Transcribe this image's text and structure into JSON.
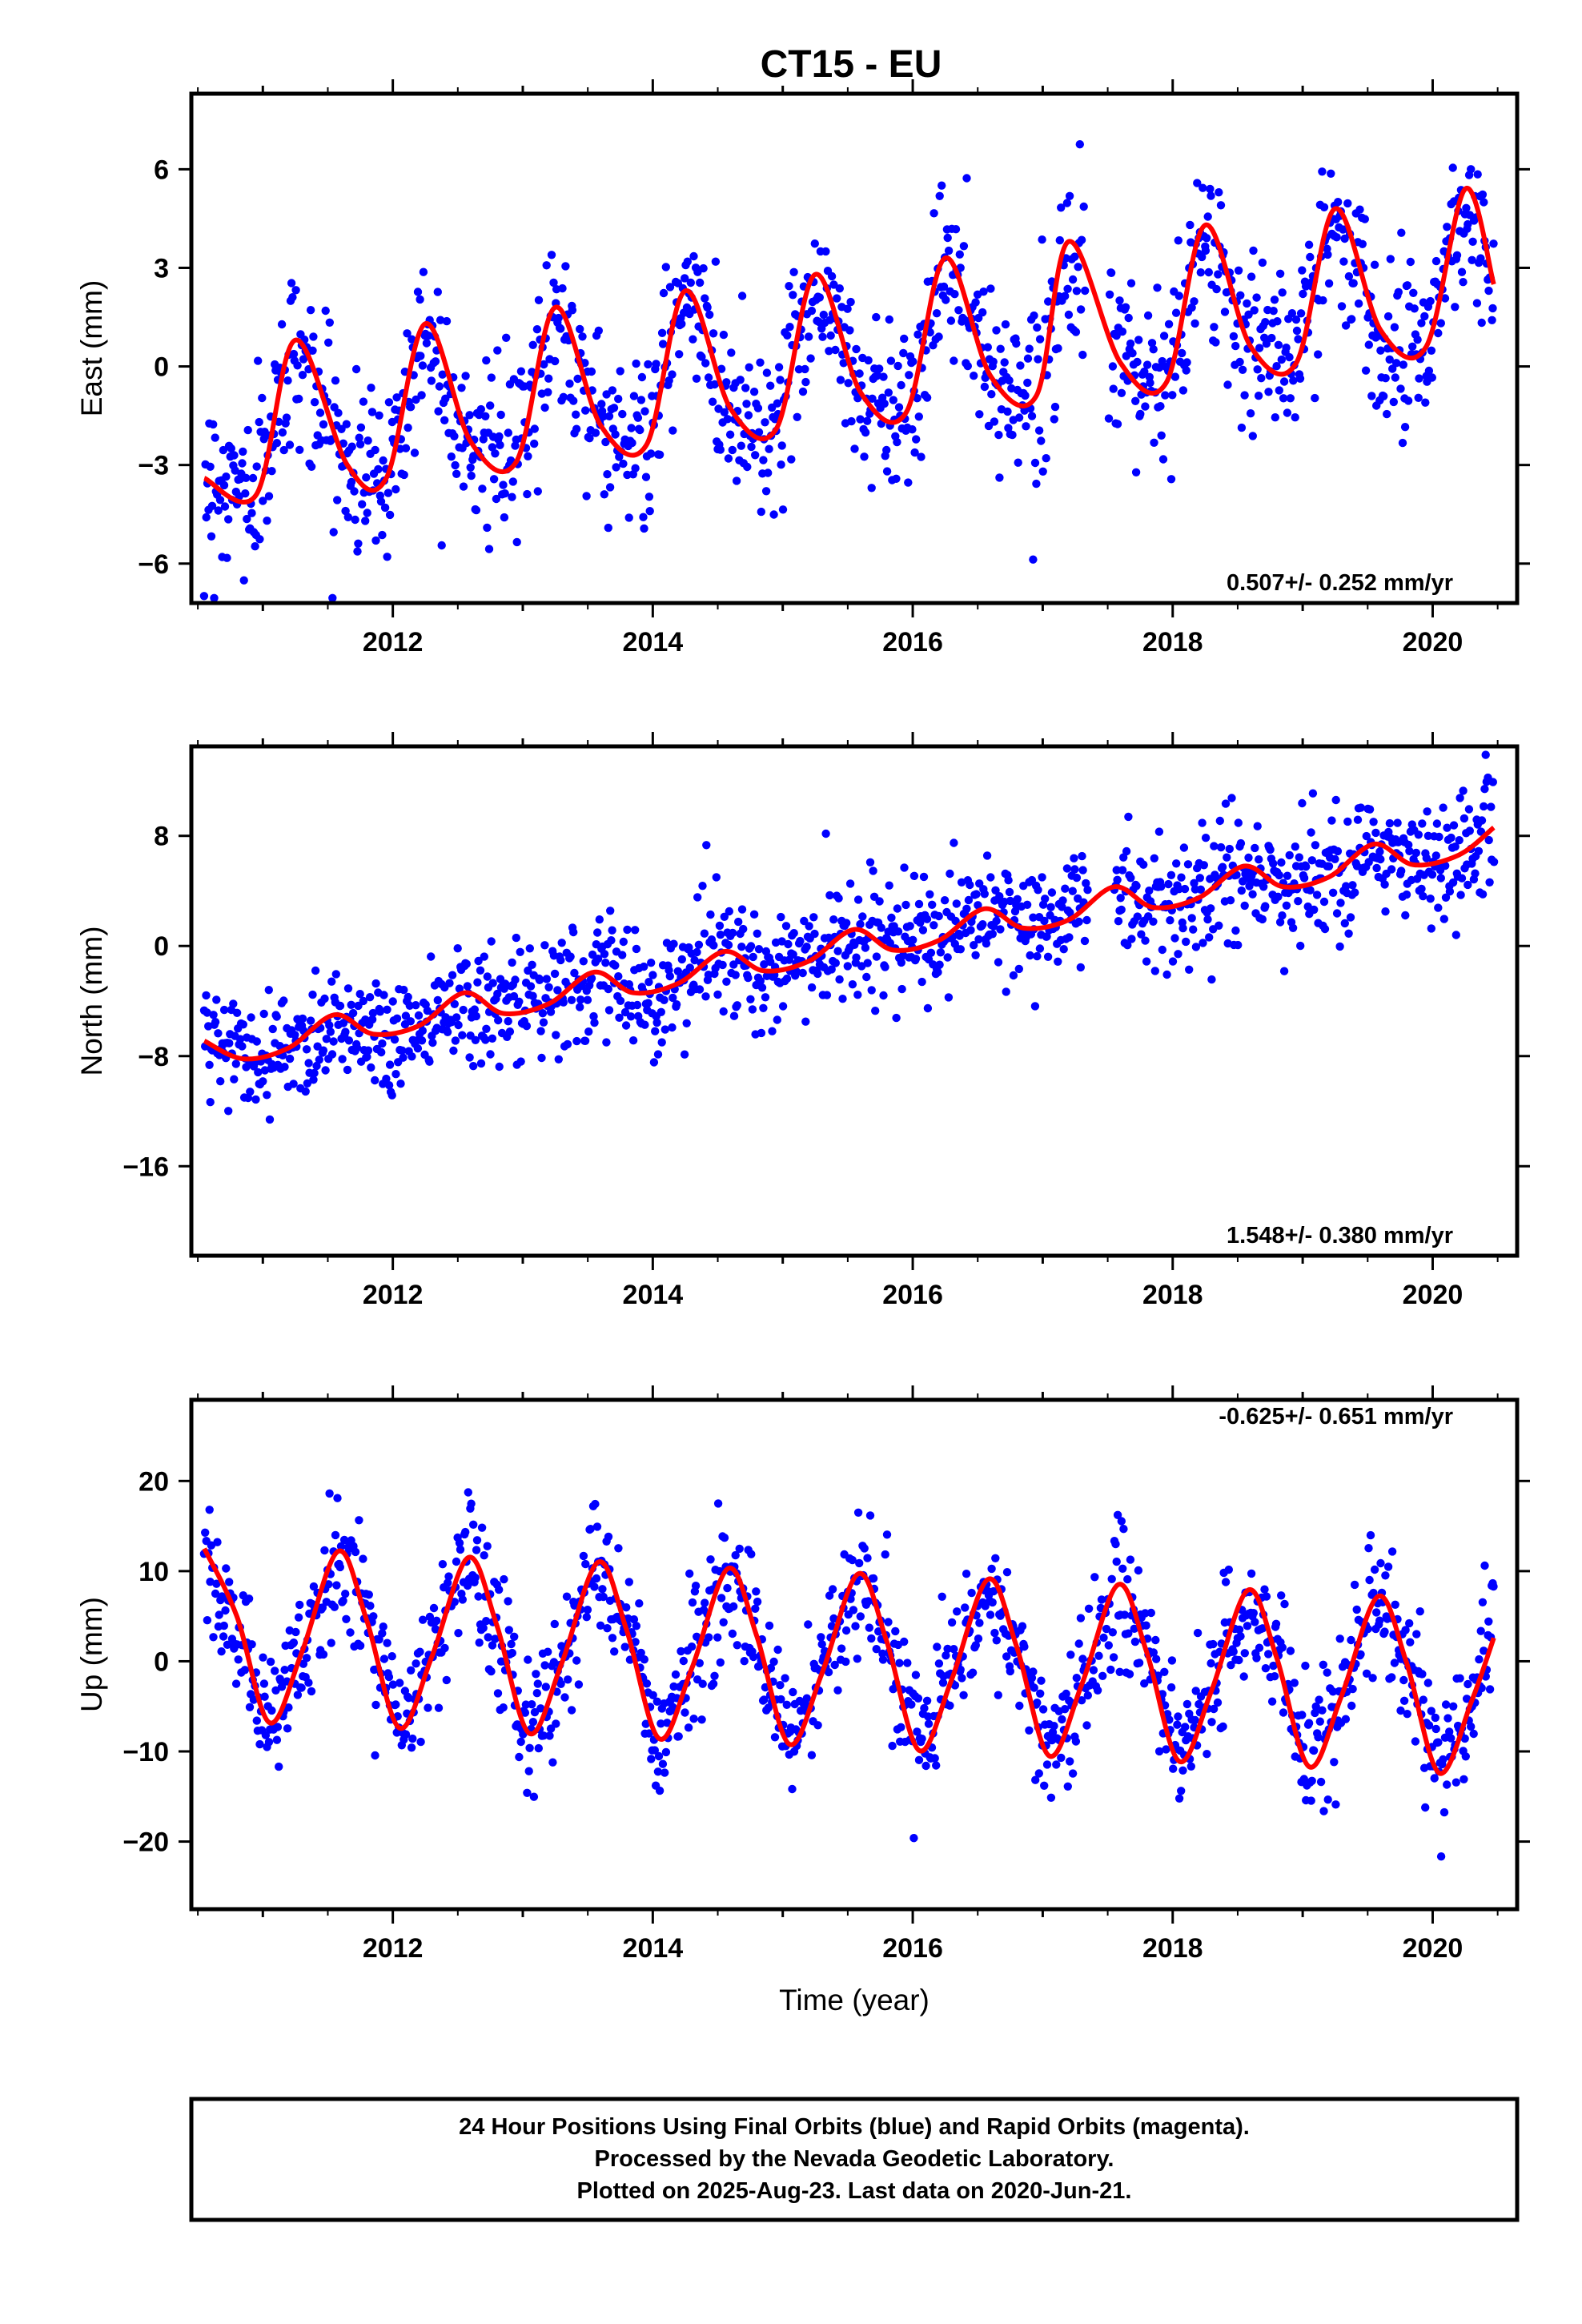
{
  "title": "CT15 - EU",
  "footer": {
    "line1": "24 Hour Positions Using Final Orbits (blue) and Rapid Orbits (magenta).",
    "line2": "Processed by the Nevada Geodetic Laboratory.",
    "line3": "Plotted on 2025-Aug-23. Last data on 2020-Jun-21."
  },
  "colors": {
    "points": "#0000ff",
    "fit": "#ff0000",
    "frame": "#000000"
  },
  "chart_data": [
    {
      "type": "scatter",
      "ylabel": "East (mm)",
      "xlabel": "",
      "rate_label": "0.507+/- 0.252 mm/yr",
      "rate_position": "bottom-right",
      "xlim": [
        2010.45,
        2020.65
      ],
      "ylim": [
        -7.2,
        8.3
      ],
      "xticks": [
        "2012",
        "2014",
        "2016",
        "2018",
        "2020"
      ],
      "yticks": [
        "6",
        "3",
        "0",
        "-3",
        "-6"
      ],
      "series": [
        {
          "kind": "points",
          "values_note": "daily positions, first/last data 2010.55 / 2020.47",
          "x_start": 2010.55,
          "x_end": 2020.47,
          "trend_mm_per_yr": 0.507,
          "offset_mm": -1.6,
          "annual_amp_mm": 2.6,
          "phase_yr": 0.02,
          "scatter_mm": 1.3
        },
        {
          "kind": "fit",
          "x": [
            2010.55,
            2010.95,
            2011.25,
            2011.65,
            2011.95,
            2012.25,
            2012.6,
            2012.95,
            2013.25,
            2013.6,
            2013.95,
            2014.25,
            2014.6,
            2014.95,
            2015.25,
            2015.6,
            2015.95,
            2016.25,
            2016.6,
            2016.95,
            2017.2,
            2017.6,
            2017.95,
            2018.25,
            2018.6,
            2018.95,
            2019.25,
            2019.6,
            2019.95,
            2020.25,
            2020.47
          ],
          "y": [
            -3.4,
            -3.9,
            0.8,
            -3.0,
            -3.4,
            1.3,
            -2.3,
            -2.9,
            1.8,
            -1.8,
            -2.4,
            2.3,
            -1.3,
            -1.9,
            2.8,
            -0.8,
            -1.4,
            3.3,
            -0.3,
            -0.9,
            3.8,
            0.1,
            -0.5,
            4.3,
            0.6,
            0.1,
            4.8,
            1.1,
            0.6,
            5.4,
            2.5
          ]
        }
      ]
    },
    {
      "type": "scatter",
      "ylabel": "North (mm)",
      "xlabel": "",
      "rate_label": "1.548+/- 0.380 mm/yr",
      "rate_position": "bottom-right",
      "xlim": [
        2010.45,
        2020.65
      ],
      "ylim": [
        -22.5,
        14.5
      ],
      "xticks": [
        "2012",
        "2014",
        "2016",
        "2018",
        "2020"
      ],
      "yticks": [
        "8",
        "0",
        "-8",
        "-16"
      ],
      "series": [
        {
          "kind": "points",
          "x_start": 2010.55,
          "x_end": 2020.47,
          "trend_mm_per_yr": 1.548,
          "offset_mm": -7.6,
          "annual_amp_mm": 1.0,
          "phase_yr": 0.3,
          "scatter_mm": 2.2
        },
        {
          "kind": "fit",
          "x": [
            2010.55,
            2010.85,
            2011.2,
            2011.55,
            2011.85,
            2012.2,
            2012.55,
            2012.85,
            2013.2,
            2013.55,
            2013.85,
            2014.2,
            2014.55,
            2014.85,
            2015.2,
            2015.55,
            2015.85,
            2016.2,
            2016.55,
            2016.85,
            2017.2,
            2017.55,
            2017.85,
            2018.2,
            2018.55,
            2018.85,
            2019.2,
            2019.55,
            2019.85,
            2020.2,
            2020.47
          ],
          "y": [
            -6.9,
            -8.2,
            -7.4,
            -5.0,
            -6.4,
            -5.8,
            -3.4,
            -4.9,
            -4.2,
            -1.9,
            -3.4,
            -2.7,
            -0.4,
            -1.8,
            -1.1,
            1.2,
            -0.3,
            0.4,
            2.7,
            1.3,
            1.9,
            4.3,
            2.8,
            3.5,
            5.8,
            4.3,
            5.0,
            7.4,
            5.9,
            6.6,
            8.6
          ]
        }
      ]
    },
    {
      "type": "scatter",
      "ylabel": "Up (mm)",
      "xlabel": "Time (year)",
      "rate_label": "-0.625+/- 0.651 mm/yr",
      "rate_position": "top-right",
      "xlim": [
        2010.45,
        2020.65
      ],
      "ylim": [
        -27.5,
        29
      ],
      "xticks": [
        "2012",
        "2014",
        "2016",
        "2018",
        "2020"
      ],
      "yticks": [
        "20",
        "10",
        "0",
        "-10",
        "-20"
      ],
      "series": [
        {
          "kind": "points",
          "x_start": 2010.55,
          "x_end": 2020.47,
          "trend_mm_per_yr": -0.625,
          "offset_mm": 3.0,
          "annual_amp_mm": 10.0,
          "phase_yr": 0.58,
          "scatter_mm": 3.8
        },
        {
          "kind": "fit",
          "x": [
            2010.55,
            2010.8,
            2011.05,
            2011.3,
            2011.58,
            2011.8,
            2012.05,
            2012.3,
            2012.58,
            2012.8,
            2013.05,
            2013.3,
            2013.58,
            2013.8,
            2014.05,
            2014.3,
            2014.58,
            2014.8,
            2015.05,
            2015.3,
            2015.58,
            2015.8,
            2016.05,
            2016.3,
            2016.58,
            2016.8,
            2017.05,
            2017.3,
            2017.58,
            2017.8,
            2018.05,
            2018.3,
            2018.58,
            2018.8,
            2019.05,
            2019.3,
            2019.58,
            2019.8,
            2020.05,
            2020.3,
            2020.47
          ],
          "y": [
            12.5,
            5.0,
            -6.8,
            1.0,
            12.2,
            4.5,
            -7.4,
            0.5,
            11.5,
            4.0,
            -8.0,
            -0.2,
            11.0,
            3.4,
            -8.6,
            -0.8,
            10.3,
            2.8,
            -9.2,
            -1.4,
            9.7,
            2.2,
            -9.9,
            -2.0,
            9.1,
            1.6,
            -10.5,
            -2.6,
            8.5,
            1.0,
            -11.1,
            -3.2,
            7.9,
            0.4,
            -11.7,
            -3.8,
            7.2,
            -0.2,
            -12.4,
            -4.4,
            2.6
          ]
        }
      ]
    }
  ]
}
